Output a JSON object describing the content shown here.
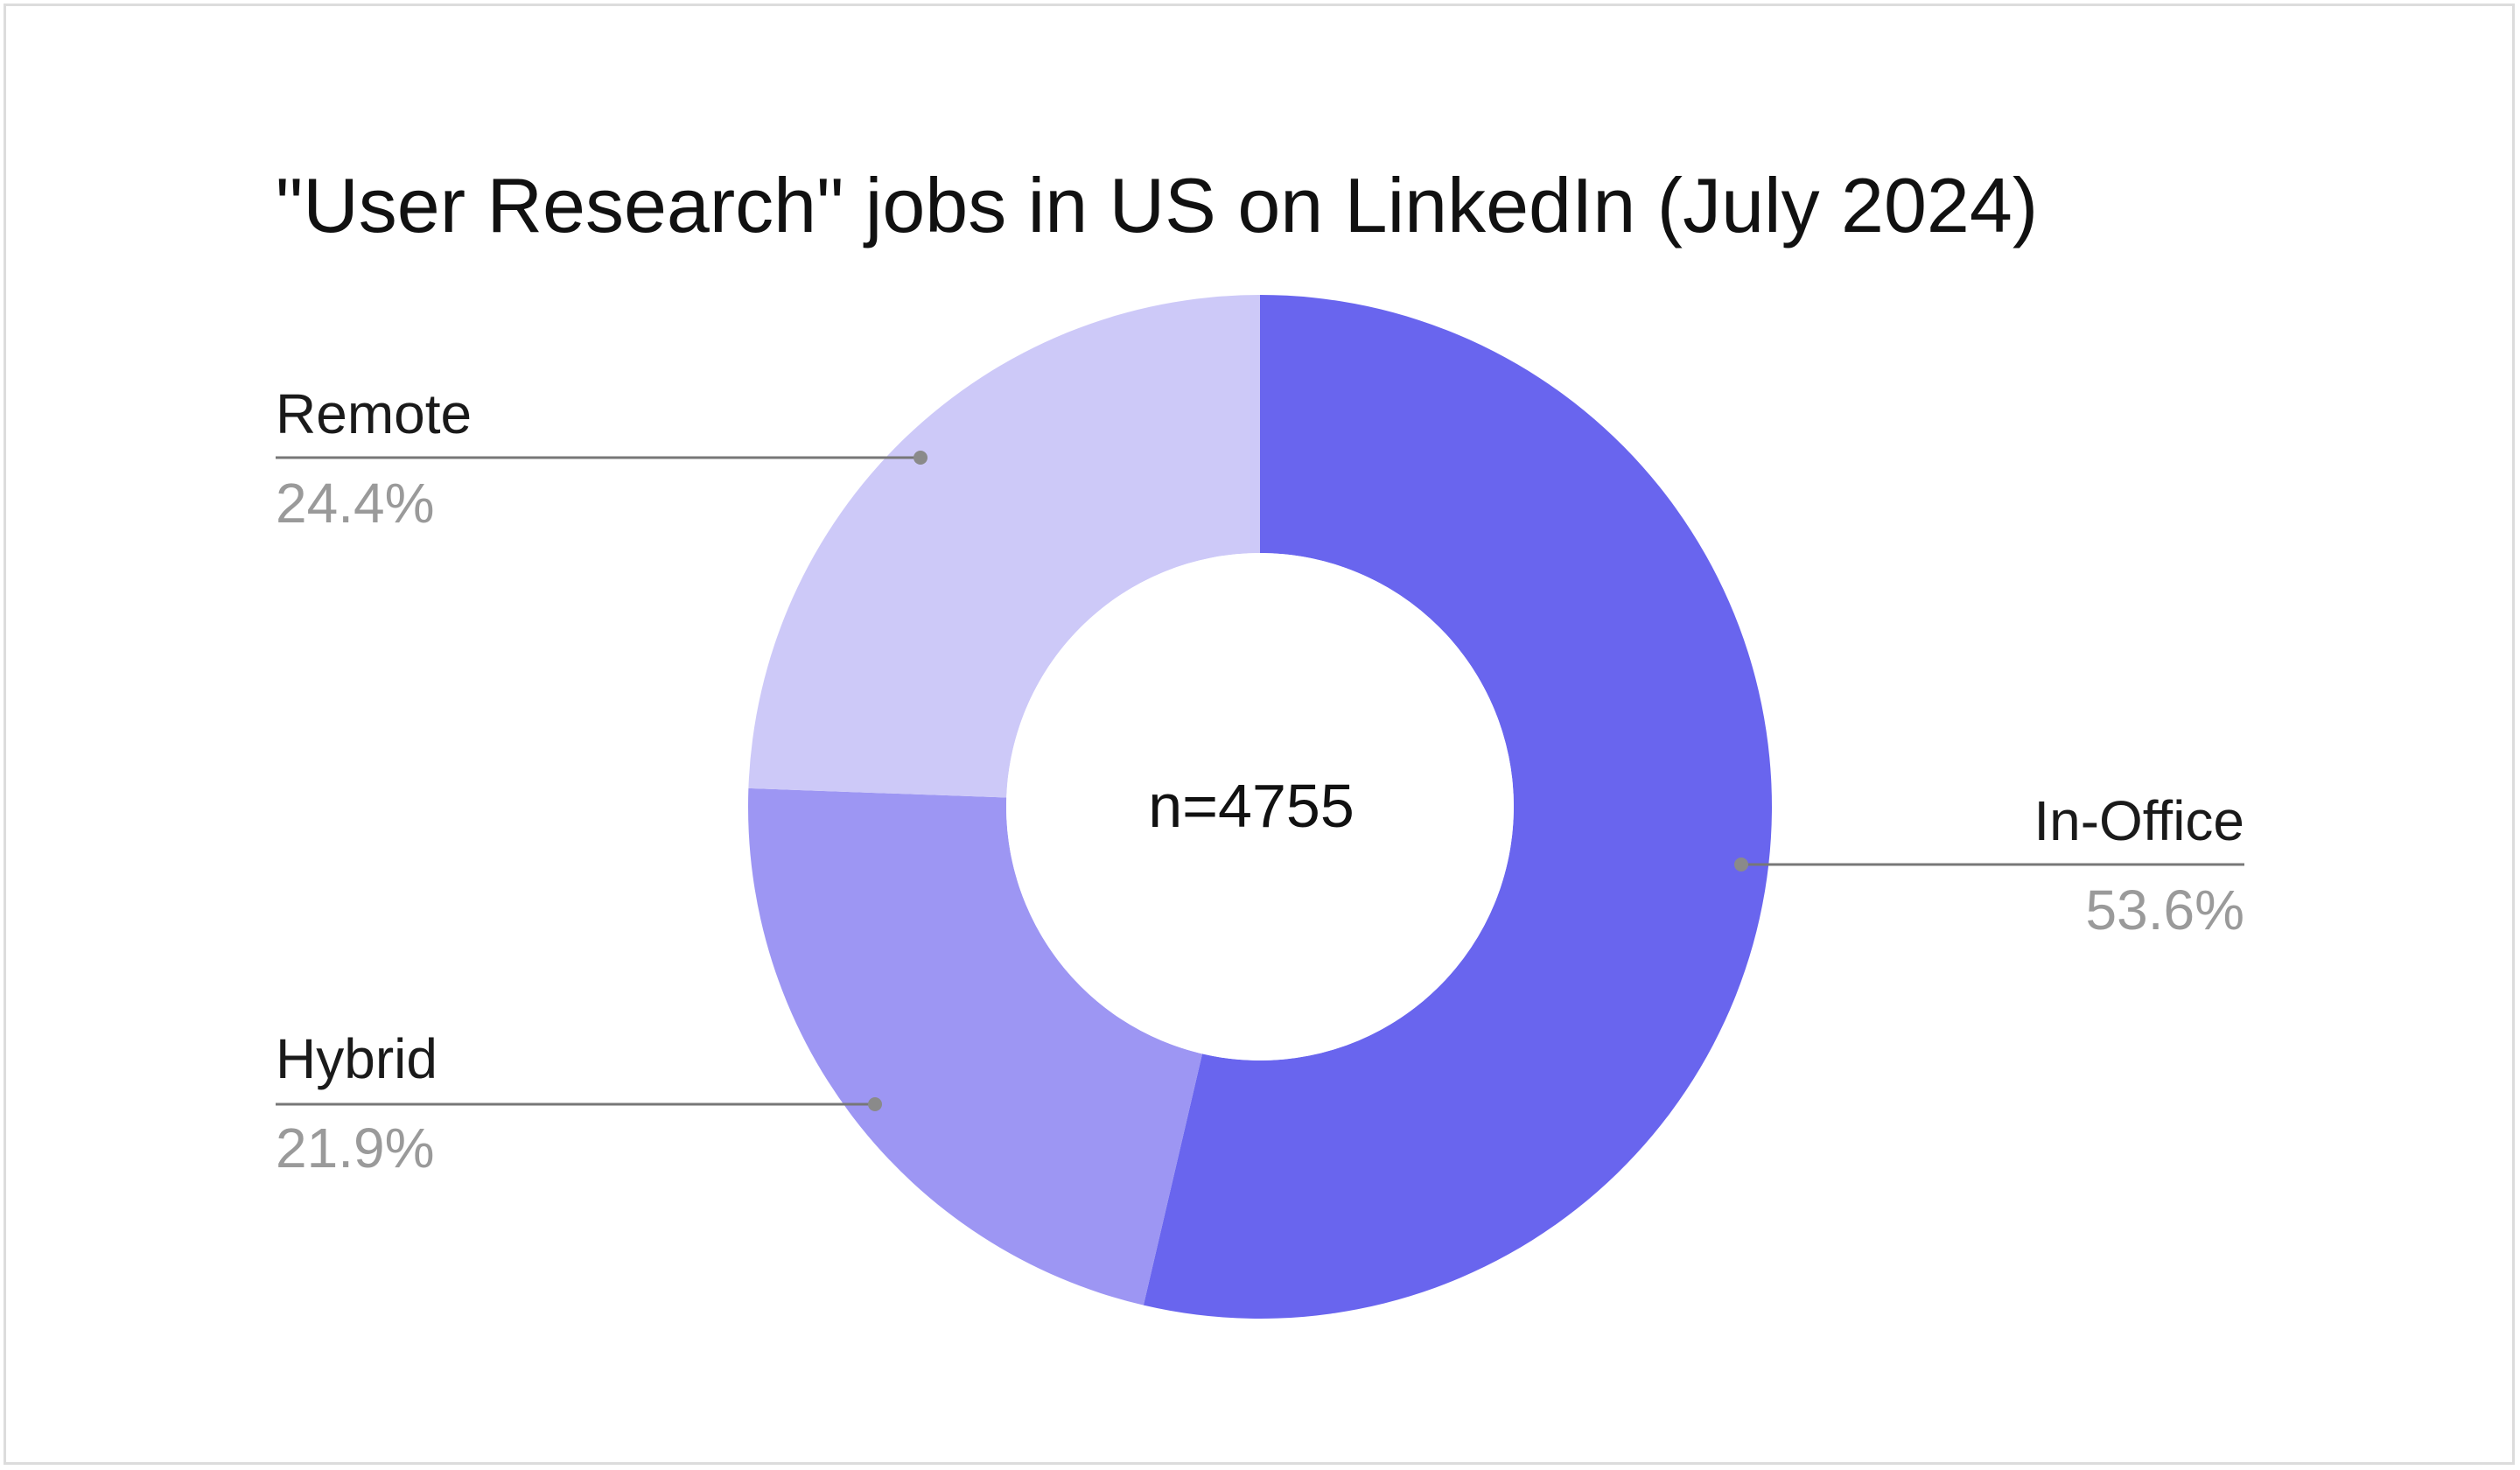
{
  "chart_data": {
    "type": "pie",
    "donut": true,
    "title": "\"User Research\" jobs in US on LinkedIn (July 2024)",
    "center_text": "n=4755",
    "slices": [
      {
        "label": "In-Office",
        "value": 53.6,
        "percent_label": "53.6%",
        "color": "#6965ee"
      },
      {
        "label": "Hybrid",
        "value": 21.9,
        "percent_label": "21.9%",
        "color": "#9d96f3"
      },
      {
        "label": "Remote",
        "value": 24.4,
        "percent_label": "24.4%",
        "color": "#cdc9f8"
      }
    ],
    "legend": "none"
  }
}
